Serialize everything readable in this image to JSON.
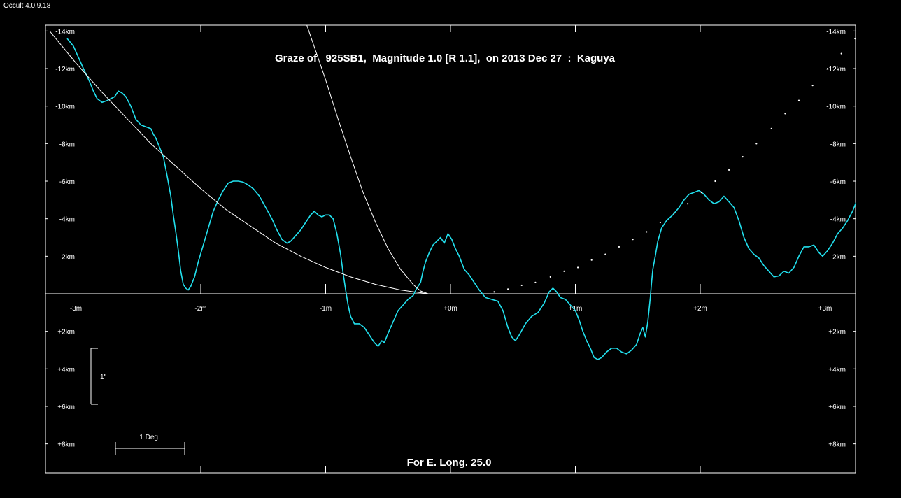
{
  "window": {
    "title": "Occult 4.0.9.18"
  },
  "chart_data": {
    "type": "line",
    "title": "Graze of   925SB1,  Magnitude 1.0 [R 1.1],  on 2013 Dec 27  :  Kaguya",
    "footer": "For E. Long. 25.0",
    "x_unit": "minutes of time (m)",
    "y_unit": "km",
    "xlim": [
      -3.25,
      3.25
    ],
    "ylim": [
      -14.3,
      9.6
    ],
    "y_inverted": true,
    "x_ticks": [
      {
        "value": -3,
        "label": "-3m"
      },
      {
        "value": -2,
        "label": "-2m"
      },
      {
        "value": -1,
        "label": "-1m"
      },
      {
        "value": 0,
        "label": "+0m"
      },
      {
        "value": 1,
        "label": "+1m"
      },
      {
        "value": 2,
        "label": "+2m"
      },
      {
        "value": 3,
        "label": "+3m"
      }
    ],
    "y_ticks": [
      {
        "value": -14,
        "label": "-14km"
      },
      {
        "value": -12,
        "label": "-12km"
      },
      {
        "value": -10,
        "label": "-10km"
      },
      {
        "value": -8,
        "label": "-8km"
      },
      {
        "value": -6,
        "label": "-6km"
      },
      {
        "value": -4,
        "label": "-4km"
      },
      {
        "value": -2,
        "label": "-2km"
      },
      {
        "value": 2,
        "label": "+2km"
      },
      {
        "value": 4,
        "label": "+4km"
      },
      {
        "value": 6,
        "label": "+6km"
      },
      {
        "value": 8,
        "label": "+8km"
      }
    ],
    "scale_bars": {
      "arcsec": {
        "label": "1\"",
        "span_km": [
          2.9,
          5.9
        ],
        "x": -2.9
      },
      "degree": {
        "label": "1 Deg.",
        "span_m": [
          -2.69,
          -2.13
        ],
        "y": 8.1
      }
    },
    "colors": {
      "profile": "#22e0ee",
      "reference": "#ffffff",
      "background": "#000000"
    },
    "series": [
      {
        "role": "limb-profile",
        "points": [
          [
            -3.07,
            -13.6
          ],
          [
            -3.02,
            -13.2
          ],
          [
            -2.98,
            -12.6
          ],
          [
            -2.94,
            -12.0
          ],
          [
            -2.89,
            -11.3
          ],
          [
            -2.86,
            -10.8
          ],
          [
            -2.83,
            -10.4
          ],
          [
            -2.79,
            -10.2
          ],
          [
            -2.75,
            -10.3
          ],
          [
            -2.72,
            -10.4
          ],
          [
            -2.69,
            -10.5
          ],
          [
            -2.66,
            -10.8
          ],
          [
            -2.63,
            -10.7
          ],
          [
            -2.6,
            -10.5
          ],
          [
            -2.56,
            -10.0
          ],
          [
            -2.52,
            -9.3
          ],
          [
            -2.48,
            -9.0
          ],
          [
            -2.44,
            -8.9
          ],
          [
            -2.4,
            -8.8
          ],
          [
            -2.38,
            -8.5
          ],
          [
            -2.36,
            -8.3
          ],
          [
            -2.33,
            -7.8
          ],
          [
            -2.3,
            -7.3
          ],
          [
            -2.27,
            -6.3
          ],
          [
            -2.24,
            -5.2
          ],
          [
            -2.22,
            -4.2
          ],
          [
            -2.2,
            -3.3
          ],
          [
            -2.18,
            -2.3
          ],
          [
            -2.16,
            -1.2
          ],
          [
            -2.14,
            -0.5
          ],
          [
            -2.12,
            -0.3
          ],
          [
            -2.1,
            -0.2
          ],
          [
            -2.08,
            -0.4
          ],
          [
            -2.05,
            -0.9
          ],
          [
            -2.02,
            -1.7
          ],
          [
            -1.98,
            -2.6
          ],
          [
            -1.94,
            -3.5
          ],
          [
            -1.9,
            -4.4
          ],
          [
            -1.86,
            -5.0
          ],
          [
            -1.82,
            -5.5
          ],
          [
            -1.78,
            -5.9
          ],
          [
            -1.74,
            -6.0
          ],
          [
            -1.7,
            -6.0
          ],
          [
            -1.66,
            -5.95
          ],
          [
            -1.62,
            -5.8
          ],
          [
            -1.58,
            -5.6
          ],
          [
            -1.53,
            -5.2
          ],
          [
            -1.48,
            -4.6
          ],
          [
            -1.43,
            -4.0
          ],
          [
            -1.39,
            -3.4
          ],
          [
            -1.35,
            -2.9
          ],
          [
            -1.31,
            -2.7
          ],
          [
            -1.28,
            -2.8
          ],
          [
            -1.24,
            -3.1
          ],
          [
            -1.2,
            -3.4
          ],
          [
            -1.16,
            -3.8
          ],
          [
            -1.12,
            -4.2
          ],
          [
            -1.09,
            -4.4
          ],
          [
            -1.06,
            -4.2
          ],
          [
            -1.03,
            -4.1
          ],
          [
            -1.0,
            -4.2
          ],
          [
            -0.97,
            -4.2
          ],
          [
            -0.94,
            -4.0
          ],
          [
            -0.91,
            -3.2
          ],
          [
            -0.88,
            -2.1
          ],
          [
            -0.86,
            -1.1
          ],
          [
            -0.84,
            -0.2
          ],
          [
            -0.82,
            0.6
          ],
          [
            -0.8,
            1.2
          ],
          [
            -0.77,
            1.6
          ],
          [
            -0.73,
            1.6
          ],
          [
            -0.69,
            1.8
          ],
          [
            -0.65,
            2.2
          ],
          [
            -0.61,
            2.6
          ],
          [
            -0.58,
            2.8
          ],
          [
            -0.55,
            2.5
          ],
          [
            -0.53,
            2.6
          ],
          [
            -0.5,
            2.1
          ],
          [
            -0.46,
            1.5
          ],
          [
            -0.42,
            0.9
          ],
          [
            -0.38,
            0.6
          ],
          [
            -0.34,
            0.3
          ],
          [
            -0.3,
            0.1
          ],
          [
            -0.27,
            -0.3
          ],
          [
            -0.24,
            -0.6
          ],
          [
            -0.22,
            -1.2
          ],
          [
            -0.2,
            -1.7
          ],
          [
            -0.17,
            -2.2
          ],
          [
            -0.14,
            -2.6
          ],
          [
            -0.11,
            -2.8
          ],
          [
            -0.08,
            -3.0
          ],
          [
            -0.05,
            -2.7
          ],
          [
            -0.02,
            -3.2
          ],
          [
            0.01,
            -2.9
          ],
          [
            0.04,
            -2.4
          ],
          [
            0.07,
            -2.0
          ],
          [
            0.11,
            -1.3
          ],
          [
            0.15,
            -1.0
          ],
          [
            0.19,
            -0.6
          ],
          [
            0.23,
            -0.2
          ],
          [
            0.28,
            0.2
          ],
          [
            0.33,
            0.3
          ],
          [
            0.38,
            0.4
          ],
          [
            0.42,
            0.9
          ],
          [
            0.46,
            1.8
          ],
          [
            0.49,
            2.3
          ],
          [
            0.52,
            2.5
          ],
          [
            0.55,
            2.2
          ],
          [
            0.6,
            1.6
          ],
          [
            0.65,
            1.2
          ],
          [
            0.7,
            1.0
          ],
          [
            0.75,
            0.5
          ],
          [
            0.79,
            -0.1
          ],
          [
            0.82,
            -0.3
          ],
          [
            0.85,
            -0.1
          ],
          [
            0.88,
            0.2
          ],
          [
            0.92,
            0.3
          ],
          [
            0.96,
            0.6
          ],
          [
            1.0,
            0.9
          ],
          [
            1.03,
            1.4
          ],
          [
            1.06,
            2.0
          ],
          [
            1.09,
            2.5
          ],
          [
            1.12,
            2.9
          ],
          [
            1.15,
            3.4
          ],
          [
            1.18,
            3.5
          ],
          [
            1.21,
            3.4
          ],
          [
            1.25,
            3.1
          ],
          [
            1.29,
            2.9
          ],
          [
            1.33,
            2.9
          ],
          [
            1.37,
            3.1
          ],
          [
            1.41,
            3.2
          ],
          [
            1.45,
            3.0
          ],
          [
            1.49,
            2.7
          ],
          [
            1.52,
            2.1
          ],
          [
            1.54,
            1.8
          ],
          [
            1.56,
            2.3
          ],
          [
            1.58,
            1.5
          ],
          [
            1.6,
            0.2
          ],
          [
            1.61,
            -0.6
          ],
          [
            1.62,
            -1.3
          ],
          [
            1.64,
            -2.0
          ],
          [
            1.66,
            -2.8
          ],
          [
            1.69,
            -3.5
          ],
          [
            1.73,
            -3.9
          ],
          [
            1.78,
            -4.2
          ],
          [
            1.83,
            -4.6
          ],
          [
            1.87,
            -5.0
          ],
          [
            1.91,
            -5.3
          ],
          [
            1.95,
            -5.4
          ],
          [
            1.99,
            -5.5
          ],
          [
            2.03,
            -5.3
          ],
          [
            2.07,
            -5.0
          ],
          [
            2.11,
            -4.8
          ],
          [
            2.15,
            -4.9
          ],
          [
            2.19,
            -5.2
          ],
          [
            2.23,
            -4.9
          ],
          [
            2.27,
            -4.6
          ],
          [
            2.31,
            -3.9
          ],
          [
            2.35,
            -3.0
          ],
          [
            2.39,
            -2.4
          ],
          [
            2.43,
            -2.1
          ],
          [
            2.47,
            -1.9
          ],
          [
            2.51,
            -1.5
          ],
          [
            2.55,
            -1.2
          ],
          [
            2.59,
            -0.9
          ],
          [
            2.63,
            -0.95
          ],
          [
            2.67,
            -1.2
          ],
          [
            2.71,
            -1.1
          ],
          [
            2.75,
            -1.4
          ],
          [
            2.79,
            -2.0
          ],
          [
            2.83,
            -2.5
          ],
          [
            2.87,
            -2.5
          ],
          [
            2.91,
            -2.6
          ],
          [
            2.95,
            -2.2
          ],
          [
            2.98,
            -2.0
          ],
          [
            3.02,
            -2.3
          ],
          [
            3.06,
            -2.7
          ],
          [
            3.1,
            -3.2
          ],
          [
            3.14,
            -3.5
          ],
          [
            3.18,
            -3.9
          ],
          [
            3.22,
            -4.4
          ],
          [
            3.25,
            -4.9
          ]
        ]
      },
      {
        "role": "reference-curve-left",
        "points": [
          [
            -3.21,
            -14.0
          ],
          [
            -3.0,
            -12.3
          ],
          [
            -2.8,
            -10.8
          ],
          [
            -2.6,
            -9.4
          ],
          [
            -2.4,
            -8.0
          ],
          [
            -2.2,
            -6.8
          ],
          [
            -2.0,
            -5.6
          ],
          [
            -1.8,
            -4.5
          ],
          [
            -1.6,
            -3.6
          ],
          [
            -1.4,
            -2.7
          ],
          [
            -1.2,
            -2.0
          ],
          [
            -1.0,
            -1.4
          ],
          [
            -0.8,
            -0.9
          ],
          [
            -0.6,
            -0.5
          ],
          [
            -0.4,
            -0.2
          ],
          [
            -0.18,
            0.0
          ]
        ]
      },
      {
        "role": "reference-curve-steep",
        "points": [
          [
            -1.15,
            -14.3
          ],
          [
            -1.0,
            -11.4
          ],
          [
            -0.9,
            -9.3
          ],
          [
            -0.8,
            -7.3
          ],
          [
            -0.7,
            -5.4
          ],
          [
            -0.6,
            -3.8
          ],
          [
            -0.5,
            -2.4
          ],
          [
            -0.4,
            -1.3
          ],
          [
            -0.3,
            -0.5
          ],
          [
            -0.24,
            -0.15
          ],
          [
            -0.18,
            0.0
          ]
        ]
      },
      {
        "role": "dotted-reference-right",
        "points": [
          [
            0.35,
            -0.1
          ],
          [
            0.46,
            -0.25
          ],
          [
            0.57,
            -0.45
          ],
          [
            0.68,
            -0.6
          ],
          [
            0.8,
            -0.9
          ],
          [
            0.91,
            -1.2
          ],
          [
            1.02,
            -1.4
          ],
          [
            1.13,
            -1.8
          ],
          [
            1.24,
            -2.1
          ],
          [
            1.35,
            -2.5
          ],
          [
            1.46,
            -2.9
          ],
          [
            1.57,
            -3.3
          ],
          [
            1.68,
            -3.8
          ],
          [
            1.79,
            -4.3
          ],
          [
            1.9,
            -4.8
          ],
          [
            2.01,
            -5.4
          ],
          [
            2.12,
            -6.0
          ],
          [
            2.23,
            -6.6
          ],
          [
            2.34,
            -7.3
          ],
          [
            2.45,
            -8.0
          ],
          [
            2.57,
            -8.8
          ],
          [
            2.68,
            -9.6
          ],
          [
            2.79,
            -10.3
          ],
          [
            2.9,
            -11.1
          ],
          [
            3.02,
            -12.0
          ],
          [
            3.13,
            -12.8
          ],
          [
            3.24,
            -13.6
          ]
        ]
      }
    ]
  }
}
